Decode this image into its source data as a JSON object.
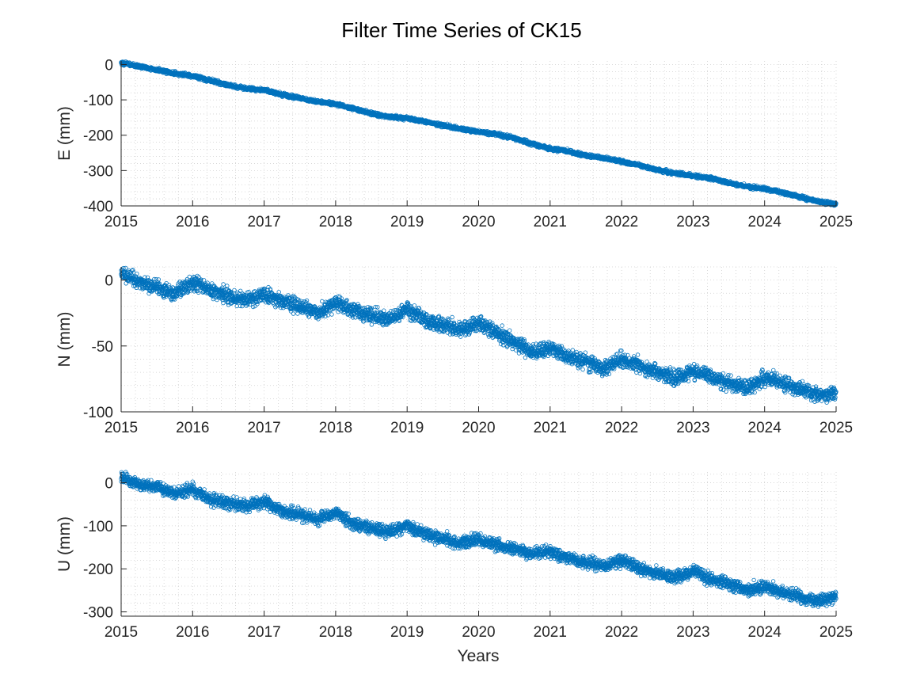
{
  "figure": {
    "title": "Filter Time Series of CK15",
    "xlabel": "Years",
    "marker_color": "#0072BD",
    "axis_color": "#262626",
    "grid_color": "#cfcfcf"
  },
  "chart_data": [
    {
      "type": "scatter",
      "ylabel": "E (mm)",
      "xlim": [
        2015,
        2025
      ],
      "ylim": [
        -400,
        10
      ],
      "xticks": [
        2015,
        2016,
        2017,
        2018,
        2019,
        2020,
        2021,
        2022,
        2023,
        2024,
        2025
      ],
      "yticks": [
        0,
        -100,
        -200,
        -300,
        -400
      ],
      "grid": "major and minor, dotted",
      "series": [
        {
          "marker": "circle",
          "x": [
            2015.0,
            2015.25,
            2015.5,
            2015.75,
            2016.0,
            2016.25,
            2016.5,
            2016.75,
            2017.0,
            2017.25,
            2017.5,
            2017.75,
            2018.0,
            2018.25,
            2018.5,
            2018.75,
            2019.0,
            2019.25,
            2019.5,
            2019.75,
            2020.0,
            2020.25,
            2020.5,
            2020.75,
            2021.0,
            2021.25,
            2021.5,
            2021.75,
            2022.0,
            2022.25,
            2022.5,
            2022.75,
            2023.0,
            2023.25,
            2023.5,
            2023.75,
            2024.0,
            2024.25,
            2024.5,
            2024.75,
            2025.0
          ],
          "y": [
            5,
            -5,
            -15,
            -25,
            -32,
            -45,
            -58,
            -68,
            -72,
            -85,
            -95,
            -105,
            -112,
            -125,
            -138,
            -148,
            -152,
            -162,
            -172,
            -182,
            -190,
            -197,
            -208,
            -224,
            -238,
            -245,
            -258,
            -265,
            -275,
            -285,
            -298,
            -308,
            -315,
            -322,
            -335,
            -345,
            -352,
            -362,
            -375,
            -388,
            -395
          ]
        }
      ]
    },
    {
      "type": "scatter",
      "ylabel": "N (mm)",
      "xlim": [
        2015,
        2025
      ],
      "ylim": [
        -100,
        10
      ],
      "xticks": [
        2015,
        2016,
        2017,
        2018,
        2019,
        2020,
        2021,
        2022,
        2023,
        2024,
        2025
      ],
      "yticks": [
        0,
        -50,
        -100
      ],
      "grid": "major and minor, dotted",
      "series": [
        {
          "marker": "circle",
          "x": [
            2015.0,
            2015.25,
            2015.5,
            2015.75,
            2016.0,
            2016.25,
            2016.5,
            2016.75,
            2017.0,
            2017.25,
            2017.5,
            2017.75,
            2018.0,
            2018.25,
            2018.5,
            2018.75,
            2019.0,
            2019.25,
            2019.5,
            2019.75,
            2020.0,
            2020.25,
            2020.5,
            2020.75,
            2021.0,
            2021.25,
            2021.5,
            2021.75,
            2022.0,
            2022.25,
            2022.5,
            2022.75,
            2023.0,
            2023.25,
            2023.5,
            2023.75,
            2024.0,
            2024.25,
            2024.5,
            2024.75,
            2025.0
          ],
          "y": [
            5,
            -2,
            -5,
            -10,
            -2,
            -8,
            -12,
            -16,
            -10,
            -16,
            -20,
            -25,
            -17,
            -23,
            -27,
            -30,
            -22,
            -30,
            -34,
            -38,
            -33,
            -40,
            -47,
            -55,
            -52,
            -58,
            -62,
            -67,
            -60,
            -65,
            -70,
            -74,
            -69,
            -74,
            -78,
            -82,
            -74,
            -78,
            -83,
            -88,
            -85
          ]
        }
      ]
    },
    {
      "type": "scatter",
      "ylabel": "U (mm)",
      "xlim": [
        2015,
        2025
      ],
      "ylim": [
        -310,
        25
      ],
      "xticks": [
        2015,
        2016,
        2017,
        2018,
        2019,
        2020,
        2021,
        2022,
        2023,
        2024,
        2025
      ],
      "yticks": [
        0,
        -100,
        -200,
        -300
      ],
      "grid": "major and minor, dotted",
      "series": [
        {
          "marker": "circle",
          "x": [
            2015.0,
            2015.25,
            2015.5,
            2015.75,
            2016.0,
            2016.25,
            2016.5,
            2016.75,
            2017.0,
            2017.25,
            2017.5,
            2017.75,
            2018.0,
            2018.25,
            2018.5,
            2018.75,
            2019.0,
            2019.25,
            2019.5,
            2019.75,
            2020.0,
            2020.25,
            2020.5,
            2020.75,
            2021.0,
            2021.25,
            2021.5,
            2021.75,
            2022.0,
            2022.25,
            2022.5,
            2022.75,
            2023.0,
            2023.25,
            2023.5,
            2023.75,
            2024.0,
            2024.25,
            2024.5,
            2024.75,
            2025.0
          ],
          "y": [
            15,
            -5,
            -10,
            -25,
            -15,
            -40,
            -45,
            -55,
            -45,
            -65,
            -75,
            -85,
            -70,
            -95,
            -105,
            -115,
            -100,
            -120,
            -130,
            -140,
            -130,
            -145,
            -155,
            -165,
            -160,
            -175,
            -185,
            -195,
            -180,
            -200,
            -210,
            -220,
            -205,
            -225,
            -235,
            -250,
            -240,
            -255,
            -265,
            -275,
            -265
          ]
        }
      ]
    }
  ]
}
